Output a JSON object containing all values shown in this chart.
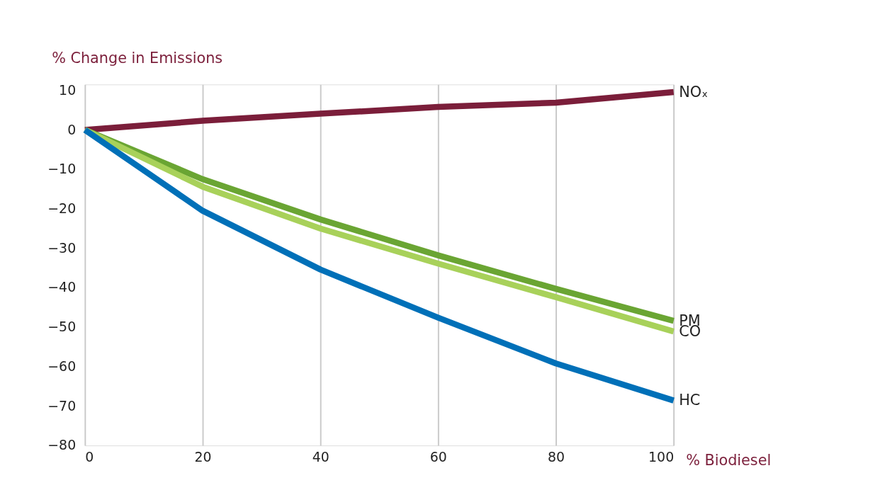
{
  "chart_data": {
    "type": "line",
    "xlabel": "% Biodiesel",
    "ylabel": "% Change in Emissions",
    "x": [
      0,
      20,
      40,
      60,
      80,
      100
    ],
    "series": [
      {
        "name": "NOₓ",
        "color": "#7b1e3a",
        "values": [
          0,
          2.3,
          4.1,
          5.8,
          6.9,
          9.6
        ]
      },
      {
        "name": "PM",
        "color": "#6aa533",
        "values": [
          0,
          -12.5,
          -22.7,
          -31.8,
          -40.3,
          -48.4
        ]
      },
      {
        "name": "CO",
        "color": "#a8d15a",
        "values": [
          0,
          -14.4,
          -25,
          -33.9,
          -42.4,
          -51.1
        ]
      },
      {
        "name": "HC",
        "color": "#0070b8",
        "values": [
          0,
          -20.5,
          -35.4,
          -47.6,
          -59.2,
          -68.6
        ]
      }
    ],
    "xlim": [
      0,
      100
    ],
    "xticks": [
      0,
      20,
      40,
      60,
      80,
      100
    ],
    "ylim": [
      -80,
      11.5
    ],
    "yticks": [
      10,
      0,
      -10,
      -20,
      -30,
      -40,
      -50,
      -60,
      -70,
      -80
    ],
    "grid": "x",
    "legend": false,
    "marker": "none",
    "line_style": "solid"
  }
}
